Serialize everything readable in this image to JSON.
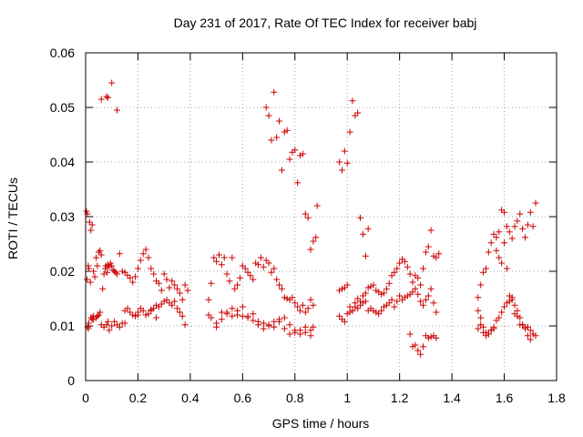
{
  "chart_data": {
    "type": "scatter",
    "title": "Day 231 of 2017, Rate Of TEC Index for receiver babj",
    "xlabel": "GPS time / hours",
    "ylabel": "ROTI / TECUs",
    "xlim": [
      0,
      1.8
    ],
    "ylim": [
      0,
      0.06
    ],
    "x_ticks": [
      0,
      0.2,
      0.4,
      0.6,
      0.8,
      1,
      1.2,
      1.4,
      1.6,
      1.8
    ],
    "x_tick_labels": [
      "0",
      "0.2",
      "0.4",
      "0.6",
      "0.8",
      "1",
      "1.2",
      "1.4",
      "1.6",
      "1.8"
    ],
    "y_ticks": [
      0,
      0.01,
      0.02,
      0.03,
      0.04,
      0.05,
      0.06
    ],
    "y_tick_labels": [
      "0",
      "0.01",
      "0.02",
      "0.03",
      "0.04",
      "0.05",
      "0.06"
    ],
    "grid": true,
    "marker": "+",
    "marker_color": "#cc0000",
    "series": [
      {
        "x": [
          0.003,
          0.007,
          0.01,
          0.012,
          0.015,
          0.018,
          0.02,
          0.025,
          0.03,
          0.035,
          0.04,
          0.045,
          0.05,
          0.055,
          0.06,
          0.065,
          0.07,
          0.075,
          0.078,
          0.082,
          0.085,
          0.09,
          0.095,
          0.1,
          0.105,
          0.11,
          0.115,
          0.12,
          0.13,
          0.14,
          0.15,
          0.16,
          0.17,
          0.18,
          0.19,
          0.2,
          0.21,
          0.22,
          0.23,
          0.24,
          0.25,
          0.26,
          0.27,
          0.28,
          0.29,
          0.3,
          0.31,
          0.32,
          0.33,
          0.34,
          0.35,
          0.36,
          0.37,
          0.38,
          0.39,
          0.008,
          0.012,
          0.02,
          0.025,
          0.03,
          0.04,
          0.045,
          0.05,
          0.055,
          0.06,
          0.07,
          0.08,
          0.085,
          0.09,
          0.1,
          0.11,
          0.12,
          0.13,
          0.14,
          0.15,
          0.16,
          0.17,
          0.18,
          0.19,
          0.2,
          0.21,
          0.22,
          0.23,
          0.24,
          0.25,
          0.26,
          0.27,
          0.28,
          0.29,
          0.3,
          0.31,
          0.32,
          0.33,
          0.34,
          0.35,
          0.36,
          0.37,
          0.38,
          0.005,
          0.01,
          0.025,
          0.03,
          0.06,
          0.08,
          0.085,
          0.1,
          0.12,
          0.15,
          0.2,
          0.25,
          0.27
        ],
        "y": [
          0.031,
          0.0305,
          0.021,
          0.0205,
          0.029,
          0.018,
          0.0275,
          0.0285,
          0.02,
          0.019,
          0.0225,
          0.021,
          0.0235,
          0.0238,
          0.023,
          0.0168,
          0.0195,
          0.0205,
          0.021,
          0.0198,
          0.0212,
          0.0208,
          0.0215,
          0.021,
          0.0202,
          0.02,
          0.0198,
          0.0195,
          0.0232,
          0.02,
          0.0198,
          0.0193,
          0.0188,
          0.018,
          0.019,
          0.0205,
          0.022,
          0.0232,
          0.024,
          0.0225,
          0.0205,
          0.0195,
          0.0182,
          0.0178,
          0.0165,
          0.0195,
          0.0185,
          0.017,
          0.0182,
          0.0175,
          0.0168,
          0.016,
          0.0148,
          0.0175,
          0.0165,
          0.0098,
          0.0105,
          0.0115,
          0.0112,
          0.0118,
          0.0115,
          0.0118,
          0.012,
          0.0125,
          0.0102,
          0.0098,
          0.0102,
          0.0108,
          0.0092,
          0.01,
          0.0108,
          0.0102,
          0.0098,
          0.0105,
          0.0128,
          0.0132,
          0.0125,
          0.012,
          0.0118,
          0.0125,
          0.0132,
          0.0128,
          0.012,
          0.0122,
          0.0128,
          0.0132,
          0.0138,
          0.0135,
          0.014,
          0.0145,
          0.0148,
          0.0142,
          0.0138,
          0.0145,
          0.0132,
          0.0125,
          0.0118,
          0.0102,
          0.0185,
          0.0095,
          0.0115,
          0.0112,
          0.0515,
          0.052,
          0.0518,
          0.0545,
          0.0495,
          0.0105,
          0.012,
          0.013,
          0.0115
        ]
      },
      {
        "x": [
          0.47,
          0.48,
          0.49,
          0.5,
          0.51,
          0.52,
          0.53,
          0.54,
          0.55,
          0.56,
          0.57,
          0.58,
          0.59,
          0.6,
          0.61,
          0.62,
          0.63,
          0.64,
          0.65,
          0.66,
          0.67,
          0.68,
          0.69,
          0.7,
          0.71,
          0.72,
          0.73,
          0.74,
          0.75,
          0.76,
          0.77,
          0.78,
          0.79,
          0.8,
          0.81,
          0.82,
          0.83,
          0.84,
          0.85,
          0.86,
          0.87,
          0.47,
          0.48,
          0.5,
          0.52,
          0.54,
          0.56,
          0.58,
          0.6,
          0.62,
          0.64,
          0.66,
          0.68,
          0.7,
          0.72,
          0.74,
          0.76,
          0.78,
          0.8,
          0.82,
          0.84,
          0.86,
          0.69,
          0.7,
          0.71,
          0.72,
          0.73,
          0.74,
          0.75,
          0.76,
          0.77,
          0.78,
          0.79,
          0.8,
          0.81,
          0.82,
          0.83,
          0.84,
          0.85,
          0.86,
          0.87,
          0.88,
          0.885,
          0.5,
          0.52,
          0.54,
          0.56,
          0.58,
          0.6,
          0.62,
          0.64,
          0.66,
          0.68,
          0.7,
          0.72,
          0.74,
          0.76,
          0.78,
          0.8,
          0.82,
          0.84,
          0.86,
          0.87
        ],
        "y": [
          0.0148,
          0.0178,
          0.0225,
          0.0218,
          0.023,
          0.0212,
          0.0225,
          0.0195,
          0.0182,
          0.0225,
          0.0168,
          0.0175,
          0.0188,
          0.021,
          0.0205,
          0.0198,
          0.0192,
          0.0185,
          0.0215,
          0.0212,
          0.0225,
          0.0208,
          0.022,
          0.0215,
          0.0198,
          0.0205,
          0.0185,
          0.0175,
          0.0168,
          0.0152,
          0.015,
          0.0148,
          0.0152,
          0.0142,
          0.0135,
          0.0128,
          0.0138,
          0.0125,
          0.0132,
          0.0148,
          0.0138,
          0.012,
          0.0115,
          0.0105,
          0.0125,
          0.0122,
          0.0118,
          0.012,
          0.0118,
          0.0115,
          0.011,
          0.0108,
          0.0105,
          0.0102,
          0.0108,
          0.0112,
          0.0115,
          0.0085,
          0.0088,
          0.0092,
          0.0098,
          0.0082,
          0.05,
          0.0485,
          0.044,
          0.0528,
          0.0445,
          0.0475,
          0.0385,
          0.0455,
          0.0458,
          0.0405,
          0.0418,
          0.0422,
          0.0362,
          0.0412,
          0.0415,
          0.0305,
          0.0298,
          0.024,
          0.0255,
          0.0262,
          0.032,
          0.0098,
          0.0112,
          0.0125,
          0.0132,
          0.0128,
          0.0135,
          0.0118,
          0.0122,
          0.0102,
          0.0095,
          0.01,
          0.0098,
          0.0108,
          0.0095,
          0.0102,
          0.0092,
          0.0085,
          0.0088,
          0.0092,
          0.0098
        ]
      },
      {
        "x": [
          0.97,
          0.98,
          0.99,
          1.0,
          1.01,
          1.02,
          1.03,
          1.04,
          1.05,
          1.06,
          1.07,
          1.08,
          1.09,
          1.1,
          1.11,
          1.12,
          1.13,
          1.14,
          1.15,
          1.16,
          1.17,
          1.18,
          1.19,
          1.2,
          1.21,
          1.22,
          1.23,
          1.24,
          1.25,
          1.26,
          1.27,
          1.28,
          1.29,
          1.3,
          1.31,
          1.32,
          1.33,
          1.34,
          1.35,
          0.97,
          0.98,
          0.99,
          1.0,
          1.01,
          1.02,
          1.03,
          1.04,
          1.05,
          1.06,
          1.07,
          1.08,
          1.09,
          1.1,
          1.11,
          1.12,
          1.13,
          1.14,
          1.15,
          1.16,
          1.17,
          1.18,
          1.19,
          1.2,
          1.21,
          1.22,
          1.23,
          1.24,
          1.25,
          1.26,
          1.27,
          1.28,
          1.29,
          1.3,
          1.31,
          1.32,
          1.33,
          1.34,
          0.97,
          0.98,
          0.99,
          1.0,
          1.01,
          1.02,
          1.03,
          1.04,
          1.05,
          1.06,
          1.07,
          1.08,
          1.24,
          1.25,
          1.26,
          1.27,
          1.28,
          1.29,
          1.3,
          1.31,
          1.32,
          1.33,
          1.34
        ],
        "y": [
          0.0165,
          0.0168,
          0.017,
          0.0175,
          0.0135,
          0.0128,
          0.0142,
          0.015,
          0.0145,
          0.0155,
          0.016,
          0.017,
          0.0172,
          0.0175,
          0.0165,
          0.0162,
          0.0158,
          0.016,
          0.0168,
          0.0178,
          0.0192,
          0.0198,
          0.0205,
          0.0215,
          0.0222,
          0.0218,
          0.0208,
          0.0195,
          0.018,
          0.0192,
          0.0188,
          0.0175,
          0.0205,
          0.0235,
          0.0245,
          0.0275,
          0.0228,
          0.0225,
          0.0232,
          0.0118,
          0.0112,
          0.0108,
          0.0122,
          0.0125,
          0.0128,
          0.0135,
          0.0132,
          0.0138,
          0.0142,
          0.0145,
          0.0128,
          0.0132,
          0.0128,
          0.0125,
          0.0122,
          0.0128,
          0.0135,
          0.0138,
          0.0142,
          0.0148,
          0.0135,
          0.0145,
          0.0155,
          0.0148,
          0.0152,
          0.0155,
          0.0158,
          0.0162,
          0.0168,
          0.0158,
          0.0145,
          0.0138,
          0.0148,
          0.0155,
          0.0168,
          0.0142,
          0.0125,
          0.04,
          0.0385,
          0.042,
          0.0398,
          0.0455,
          0.0512,
          0.0485,
          0.049,
          0.0298,
          0.0268,
          0.0228,
          0.0278,
          0.0085,
          0.0062,
          0.0065,
          0.0055,
          0.0048,
          0.0062,
          0.0082,
          0.0078,
          0.008,
          0.0082,
          0.0078
        ]
      },
      {
        "x": [
          1.5,
          1.51,
          1.52,
          1.53,
          1.54,
          1.55,
          1.56,
          1.57,
          1.58,
          1.59,
          1.6,
          1.61,
          1.62,
          1.63,
          1.64,
          1.65,
          1.66,
          1.67,
          1.68,
          1.69,
          1.7,
          1.71,
          1.72,
          1.5,
          1.51,
          1.52,
          1.53,
          1.54,
          1.55,
          1.56,
          1.57,
          1.58,
          1.59,
          1.6,
          1.61,
          1.62,
          1.63,
          1.64,
          1.65,
          1.66,
          1.67,
          1.68,
          1.69,
          1.7,
          1.71,
          1.5,
          1.51,
          1.52,
          1.53,
          1.54,
          1.55,
          1.56,
          1.57,
          1.58,
          1.59,
          1.6,
          1.61,
          1.62,
          1.63,
          1.64,
          1.65,
          1.66,
          1.67,
          1.68,
          1.69,
          1.7,
          1.71,
          1.72
        ],
        "y": [
          0.0152,
          0.0175,
          0.0198,
          0.0205,
          0.0235,
          0.0252,
          0.0268,
          0.0262,
          0.0272,
          0.0312,
          0.0308,
          0.0282,
          0.0272,
          0.026,
          0.0282,
          0.0292,
          0.0305,
          0.0278,
          0.0262,
          0.0285,
          0.0308,
          0.0282,
          0.0325,
          0.0128,
          0.0115,
          0.0098,
          0.0088,
          0.0085,
          0.0092,
          0.0095,
          0.011,
          0.0115,
          0.0125,
          0.0135,
          0.0142,
          0.0155,
          0.0148,
          0.0138,
          0.0128,
          0.0115,
          0.0102,
          0.0095,
          0.0098,
          0.0092,
          0.0085,
          0.0095,
          0.0102,
          0.0088,
          0.0082,
          0.0085,
          0.0092,
          0.0098,
          0.0238,
          0.0225,
          0.0215,
          0.0252,
          0.0205,
          0.0145,
          0.0152,
          0.0122,
          0.0118,
          0.0102,
          0.0102,
          0.0098,
          0.0082,
          0.0075,
          0.0085,
          0.0082
        ]
      }
    ]
  }
}
